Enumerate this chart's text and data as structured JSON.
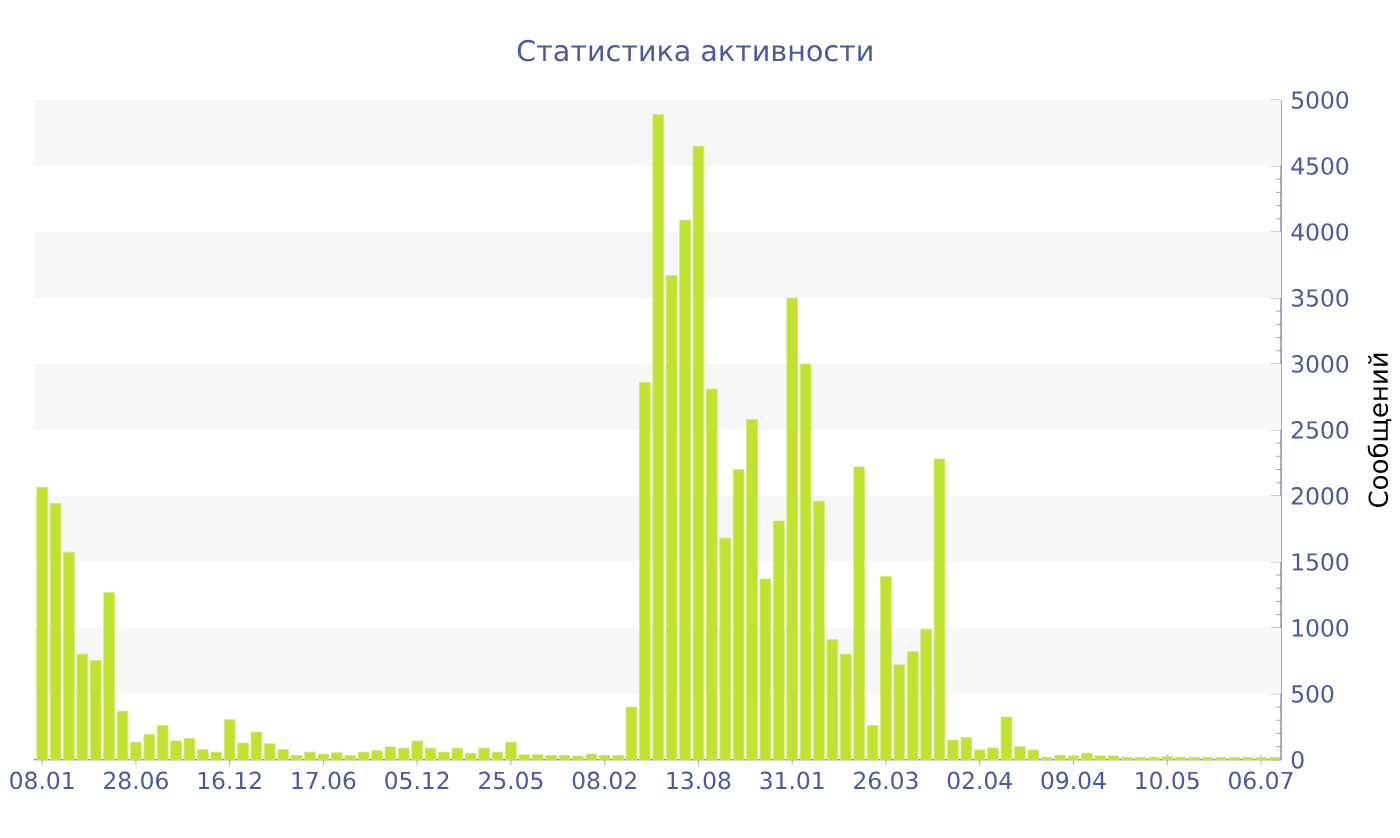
{
  "chart_data": {
    "type": "bar",
    "title": "Статистика активности",
    "ylabel": "Сообщений",
    "categories": [
      "08.01",
      null,
      null,
      null,
      null,
      null,
      null,
      "28.06",
      null,
      null,
      null,
      null,
      null,
      null,
      "16.12",
      null,
      null,
      null,
      null,
      null,
      null,
      "17.06",
      null,
      null,
      null,
      null,
      null,
      null,
      "05.12",
      null,
      null,
      null,
      null,
      null,
      null,
      "25.05",
      null,
      null,
      null,
      null,
      null,
      null,
      "08.02",
      null,
      null,
      null,
      null,
      null,
      null,
      "13.08",
      null,
      null,
      null,
      null,
      null,
      null,
      "31.01",
      null,
      null,
      null,
      null,
      null,
      null,
      "26.03",
      null,
      null,
      null,
      null,
      null,
      null,
      "02.04",
      null,
      null,
      null,
      null,
      null,
      null,
      "09.04",
      null,
      null,
      null,
      null,
      null,
      null,
      "10.05",
      null,
      null,
      null,
      null,
      null,
      null,
      "06.07",
      null
    ],
    "values": [
      2065,
      1942,
      1573,
      801,
      752,
      1268,
      369,
      133,
      192,
      261,
      143,
      162,
      78,
      59,
      305,
      128,
      211,
      123,
      78,
      34,
      59,
      44,
      54,
      34,
      59,
      69,
      98,
      88,
      143,
      88,
      59,
      88,
      49,
      88,
      59,
      133,
      39,
      39,
      34,
      34,
      29,
      44,
      34,
      34,
      400,
      2860,
      4890,
      3670,
      4090,
      4650,
      2810,
      1680,
      2200,
      2580,
      1370,
      1810,
      3500,
      3000,
      1960,
      910,
      800,
      2220,
      260,
      1390,
      720,
      820,
      990,
      2280,
      150,
      170,
      75,
      90,
      325,
      100,
      75,
      20,
      35,
      30,
      50,
      30,
      30,
      20,
      20,
      20,
      25,
      20,
      20,
      20,
      20,
      20,
      20,
      20,
      20
    ],
    "color": "#bfe330",
    "ylim": [
      0,
      5000
    ],
    "yticks": [
      0,
      500,
      1000,
      1500,
      2000,
      2500,
      3000,
      3500,
      4000,
      4500,
      5000
    ]
  }
}
